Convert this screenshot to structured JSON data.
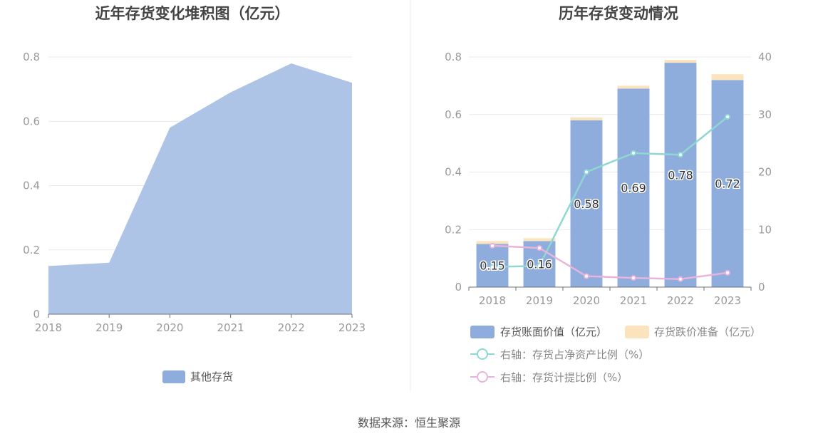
{
  "left_chart": {
    "title": "近年存货变化堆积图（亿元）",
    "legend_label": "其他存货",
    "area_color": "#aec4e6",
    "legend_color": "#8eacdc"
  },
  "right_chart": {
    "title": "历年存货变动情况",
    "legend": {
      "book_value": "存货账面价值（亿元）",
      "impairment": "存货跌价准备（亿元）",
      "net_asset_ratio": "右轴：存货占净资产比例（%）",
      "provision_ratio": "右轴：存货计提比例（%）"
    },
    "colors": {
      "book_value": "#8eacdc",
      "impairment": "#fbe3bd",
      "net_asset_ratio": "#8fd8d2",
      "provision_ratio": "#e8b4dc"
    }
  },
  "footer": {
    "source": "数据来源：恒生聚源"
  },
  "chart_data": [
    {
      "type": "area",
      "title": "近年存货变化堆积图（亿元）",
      "x": [
        "2018",
        "2019",
        "2020",
        "2021",
        "2022",
        "2023"
      ],
      "series": [
        {
          "name": "其他存货",
          "values": [
            0.15,
            0.16,
            0.58,
            0.69,
            0.78,
            0.72
          ]
        }
      ],
      "y_ticks": [
        "0",
        "0.2",
        "0.4",
        "0.6",
        "0.8"
      ],
      "ylim": [
        0,
        0.8
      ],
      "grid": true,
      "legend_position": "bottom"
    },
    {
      "type": "bar",
      "title": "历年存货变动情况",
      "categories": [
        "2018",
        "2019",
        "2020",
        "2021",
        "2022",
        "2023"
      ],
      "series": [
        {
          "name": "存货账面价值（亿元）",
          "kind": "bar",
          "stack": "inv",
          "axis": "left",
          "values": [
            0.15,
            0.16,
            0.58,
            0.69,
            0.78,
            0.72
          ],
          "labels": [
            "0.15",
            "0.16",
            "0.58",
            "0.69",
            "0.78",
            "0.72"
          ]
        },
        {
          "name": "存货跌价准备（亿元）",
          "kind": "bar",
          "stack": "inv",
          "axis": "left",
          "values": [
            0.01,
            0.01,
            0.01,
            0.01,
            0.01,
            0.02
          ]
        },
        {
          "name": "右轴：存货占净资产比例（%）",
          "kind": "line",
          "axis": "right",
          "values": [
            3.5,
            3.7,
            20.0,
            23.3,
            23.0,
            29.6
          ]
        },
        {
          "name": "右轴：存货计提比例（%）",
          "kind": "line",
          "axis": "right",
          "values": [
            7.2,
            6.8,
            1.9,
            1.6,
            1.4,
            2.5
          ]
        }
      ],
      "y_left_ticks": [
        "0",
        "0.2",
        "0.4",
        "0.6",
        "0.8"
      ],
      "y_left_lim": [
        0,
        0.8
      ],
      "y_right_ticks": [
        "0",
        "10",
        "20",
        "30",
        "40"
      ],
      "y_right_lim": [
        0,
        40
      ],
      "grid": true,
      "legend_position": "bottom"
    }
  ]
}
